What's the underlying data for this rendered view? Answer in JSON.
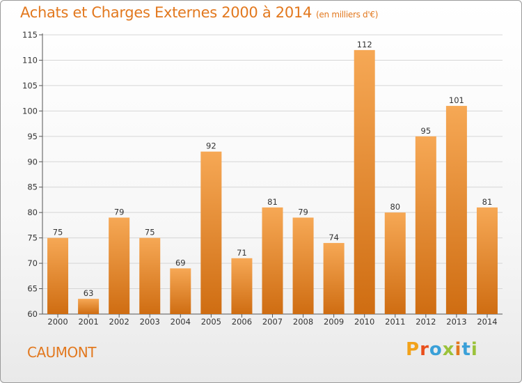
{
  "title": "Achats et Charges Externes 2000 à 2014",
  "subtitle": "(en milliers d'€)",
  "commune": "CAUMONT",
  "brand": {
    "letters": [
      "P",
      "r",
      "o",
      "x",
      "i",
      "t",
      "i"
    ],
    "colors": [
      "#f2a21a",
      "#e94f1c",
      "#3aa0d8",
      "#9bc23a",
      "#e2781e",
      "#3aa0d8",
      "#9bc23a"
    ]
  },
  "colors": {
    "bar_top": "#f6a855",
    "bar_bottom": "#cf6d12",
    "accent": "#e2781e"
  },
  "chart_data": {
    "type": "bar",
    "categories": [
      "2000",
      "2001",
      "2002",
      "2003",
      "2004",
      "2005",
      "2006",
      "2007",
      "2008",
      "2009",
      "2010",
      "2011",
      "2012",
      "2013",
      "2014"
    ],
    "values": [
      75,
      63,
      79,
      75,
      69,
      92,
      71,
      81,
      79,
      74,
      112,
      80,
      95,
      101,
      81
    ],
    "ylim": [
      60,
      115
    ],
    "yticks": [
      60,
      65,
      70,
      75,
      80,
      85,
      90,
      95,
      100,
      105,
      110,
      115
    ],
    "grid": true
  }
}
